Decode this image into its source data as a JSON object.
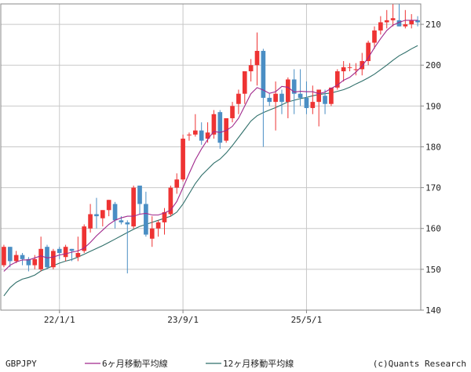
{
  "chart_data": {
    "type": "candlestick",
    "symbol": "GBPJPY",
    "ylim": [
      140,
      215
    ],
    "y_ticks": [
      "140",
      "150",
      "160",
      "170",
      "180",
      "190",
      "200",
      "210"
    ],
    "x_ticks": [
      {
        "index": 9,
        "label": "22/1/1"
      },
      {
        "index": 29,
        "label": "23/9/1"
      },
      {
        "index": 49,
        "label": "25/5/1"
      }
    ],
    "grid": true,
    "legend": [
      {
        "name": "6ヶ月移動平均線",
        "color": "#a0288c"
      },
      {
        "name": "12ヶ月移動平均線",
        "color": "#2f6f6a"
      }
    ],
    "credit": "(c)Quants Research",
    "colors": {
      "up": "#ee3333",
      "down": "#4a8ec4",
      "ma6": "#a0288c",
      "ma12": "#2f6f6a",
      "grid": "#c8c8c8",
      "axis": "#888888"
    },
    "candles": [
      [
        151.0,
        156.0,
        150.5,
        155.5
      ],
      [
        155.5,
        155.5,
        150.5,
        152.0
      ],
      [
        152.0,
        154.5,
        151.5,
        153.5
      ],
      [
        153.5,
        154.0,
        151.0,
        152.5
      ],
      [
        152.5,
        153.0,
        149.5,
        151.0
      ],
      [
        151.0,
        153.5,
        150.0,
        152.5
      ],
      [
        150.0,
        158.0,
        149.5,
        155.0
      ],
      [
        155.5,
        156.0,
        150.0,
        150.5
      ],
      [
        150.5,
        155.0,
        150.0,
        154.5
      ],
      [
        155.0,
        155.5,
        152.5,
        154.0
      ],
      [
        153.0,
        156.0,
        152.0,
        155.5
      ],
      [
        155.0,
        155.0,
        152.0,
        154.5
      ],
      [
        153.0,
        158.0,
        152.0,
        154.0
      ],
      [
        154.5,
        161.0,
        154.0,
        160.5
      ],
      [
        160.0,
        166.0,
        159.0,
        163.5
      ],
      [
        163.5,
        167.5,
        160.0,
        163.0
      ],
      [
        162.5,
        164.5,
        160.5,
        164.5
      ],
      [
        164.5,
        167.0,
        163.0,
        167.0
      ],
      [
        166.0,
        166.5,
        160.0,
        162.0
      ],
      [
        162.0,
        163.0,
        161.0,
        161.5
      ],
      [
        161.5,
        162.0,
        149.0,
        161.0
      ],
      [
        160.5,
        170.5,
        160.0,
        170.0
      ],
      [
        170.5,
        170.5,
        163.5,
        166.0
      ],
      [
        166.0,
        169.0,
        158.0,
        158.5
      ],
      [
        157.5,
        163.0,
        155.5,
        160.0
      ],
      [
        160.0,
        162.0,
        158.0,
        161.5
      ],
      [
        161.5,
        165.0,
        158.5,
        164.0
      ],
      [
        163.5,
        170.5,
        163.0,
        170.0
      ],
      [
        170.0,
        173.5,
        168.5,
        172.0
      ],
      [
        172.0,
        183.0,
        171.5,
        182.0
      ],
      [
        183.0,
        183.5,
        181.5,
        183.0
      ],
      [
        183.0,
        188.0,
        182.5,
        184.0
      ],
      [
        184.0,
        186.0,
        180.5,
        181.5
      ],
      [
        182.0,
        186.0,
        181.0,
        183.5
      ],
      [
        183.0,
        189.0,
        182.0,
        188.0
      ],
      [
        188.5,
        189.0,
        179.5,
        181.0
      ],
      [
        181.5,
        187.0,
        181.0,
        187.0
      ],
      [
        187.0,
        191.0,
        186.0,
        190.0
      ],
      [
        190.5,
        194.0,
        188.0,
        193.0
      ],
      [
        193.0,
        198.5,
        190.5,
        198.5
      ],
      [
        198.5,
        201.5,
        196.0,
        200.0
      ],
      [
        200.0,
        208.0,
        195.0,
        203.5
      ],
      [
        203.5,
        204.0,
        180.0,
        192.0
      ],
      [
        192.0,
        193.0,
        190.0,
        191.0
      ],
      [
        191.0,
        196.0,
        184.0,
        193.0
      ],
      [
        193.0,
        194.0,
        188.0,
        191.0
      ],
      [
        191.0,
        197.0,
        187.0,
        196.5
      ],
      [
        196.5,
        199.0,
        188.0,
        193.0
      ],
      [
        193.0,
        199.0,
        190.0,
        192.0
      ],
      [
        192.0,
        196.0,
        188.0,
        189.5
      ],
      [
        189.5,
        195.0,
        188.0,
        191.0
      ],
      [
        191.0,
        194.0,
        185.0,
        194.0
      ],
      [
        192.5,
        194.0,
        188.0,
        190.5
      ],
      [
        190.5,
        194.5,
        190.0,
        194.5
      ],
      [
        194.5,
        199.0,
        194.0,
        198.5
      ],
      [
        198.5,
        201.0,
        196.0,
        199.5
      ],
      [
        199.5,
        200.5,
        198.5,
        199.5
      ],
      [
        199.0,
        200.5,
        197.5,
        199.0
      ],
      [
        199.0,
        203.0,
        197.5,
        201.0
      ],
      [
        201.0,
        206.0,
        200.0,
        205.5
      ],
      [
        205.5,
        209.5,
        204.0,
        208.5
      ],
      [
        208.5,
        212.0,
        207.5,
        210.5
      ],
      [
        210.5,
        213.5,
        209.0,
        211.0
      ],
      [
        211.0,
        215.0,
        209.5,
        211.5
      ],
      [
        211.0,
        215.0,
        209.5,
        209.5
      ],
      [
        209.5,
        213.5,
        209.0,
        210.0
      ],
      [
        210.0,
        212.5,
        209.0,
        211.0
      ],
      [
        211.0,
        212.0,
        209.5,
        210.5
      ]
    ],
    "ma6": [
      149.5,
      151.0,
      151.8,
      152.3,
      152.3,
      152.8,
      153.3,
      152.8,
      153.0,
      153.5,
      153.8,
      154.2,
      154.5,
      155.2,
      156.6,
      158.2,
      159.6,
      161.0,
      162.0,
      162.6,
      163.0,
      163.0,
      163.5,
      163.7,
      163.3,
      163.3,
      163.8,
      164.5,
      166.6,
      170.0,
      173.5,
      176.8,
      179.5,
      181.8,
      183.8,
      183.5,
      184.0,
      185.0,
      187.0,
      190.0,
      193.0,
      194.5,
      193.9,
      193.1,
      193.5,
      194.8,
      194.6,
      193.4,
      193.6,
      193.5,
      193.5,
      193.0,
      193.4,
      194.3,
      195.1,
      196.3,
      197.0,
      198.3,
      199.8,
      201.8,
      204.3,
      206.5,
      208.5,
      209.8,
      210.5,
      211.0,
      211.0,
      211.0
    ],
    "ma12": [
      143.5,
      145.5,
      146.8,
      147.6,
      148.0,
      148.6,
      149.6,
      150.2,
      150.9,
      151.5,
      152.0,
      152.4,
      153.0,
      153.7,
      154.4,
      155.1,
      155.8,
      156.6,
      157.4,
      158.2,
      159.0,
      159.8,
      160.5,
      161.0,
      161.5,
      162.0,
      162.5,
      163.0,
      164.0,
      166.0,
      168.5,
      171.0,
      173.0,
      174.5,
      176.0,
      177.0,
      178.5,
      180.3,
      182.3,
      184.3,
      186.3,
      187.6,
      188.4,
      189.0,
      189.6,
      190.3,
      191.0,
      191.4,
      191.8,
      192.1,
      192.5,
      192.8,
      193.0,
      193.2,
      193.6,
      194.0,
      194.6,
      195.4,
      196.1,
      196.9,
      197.8,
      198.9,
      200.0,
      201.2,
      202.3,
      203.1,
      204.0,
      204.8
    ]
  }
}
